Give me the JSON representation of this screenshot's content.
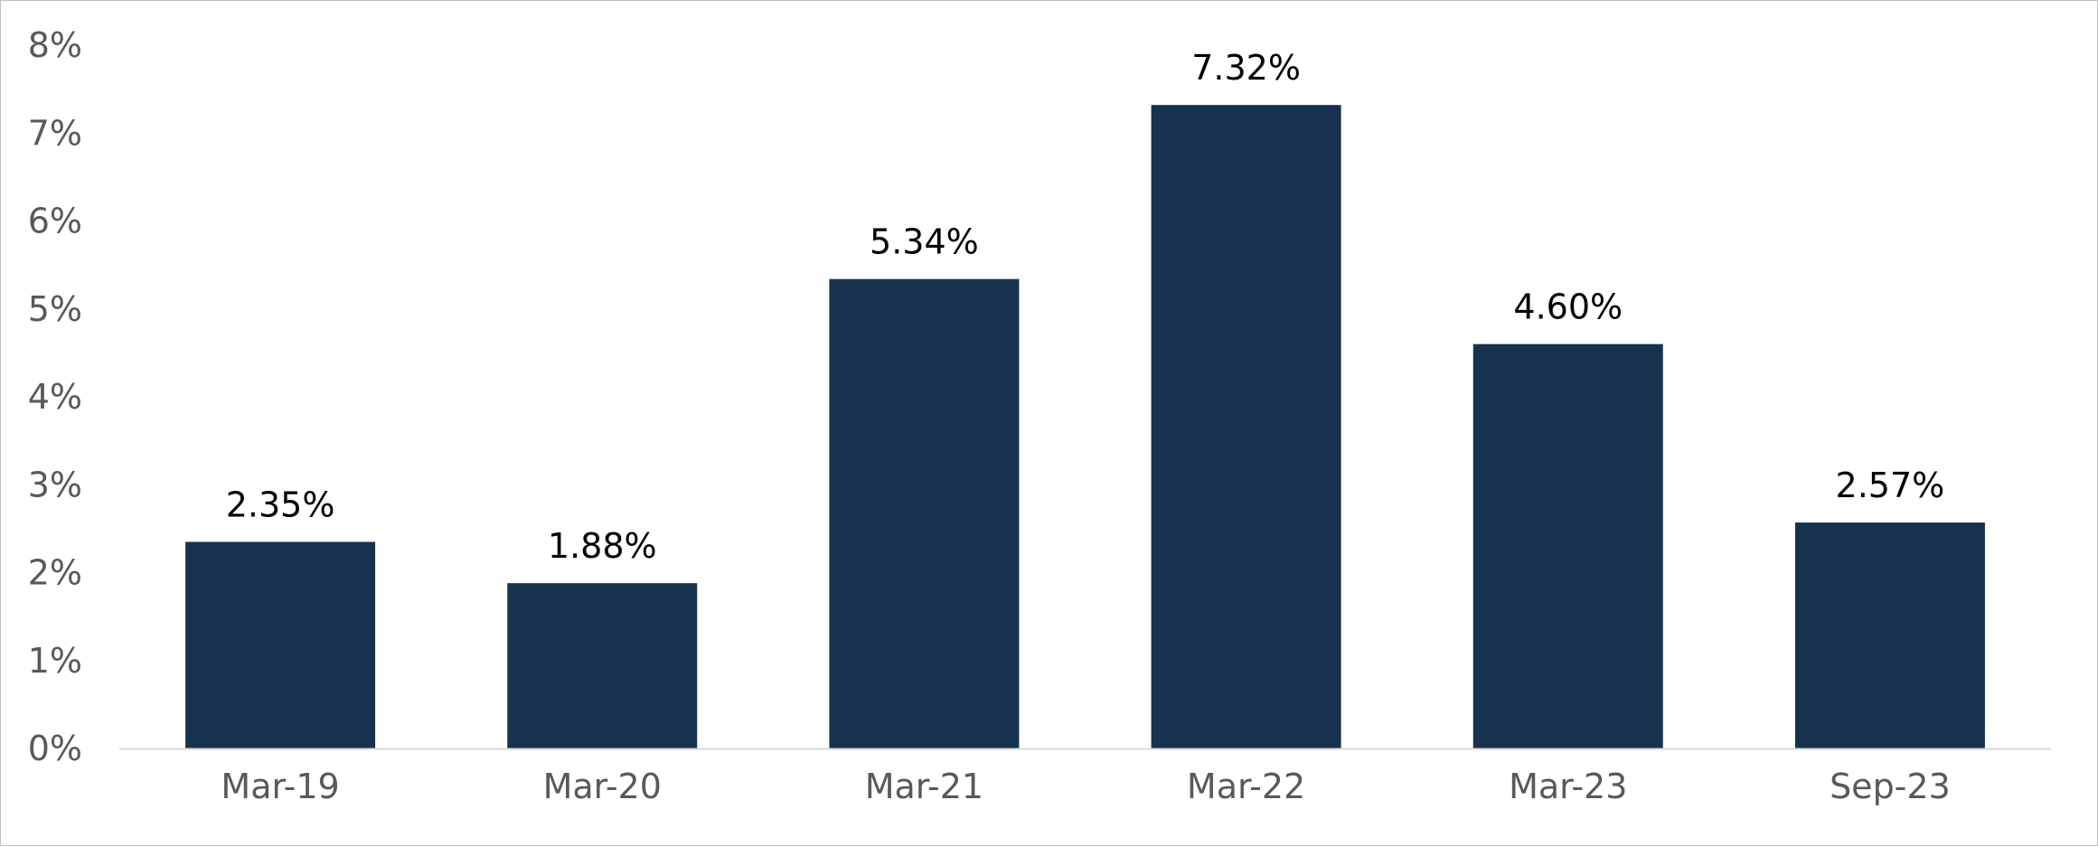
{
  "chart_data": {
    "type": "bar",
    "categories": [
      "Mar-19",
      "Mar-20",
      "Mar-21",
      "Mar-22",
      "Mar-23",
      "Sep-23"
    ],
    "values": [
      2.35,
      1.88,
      5.34,
      7.32,
      4.6,
      2.57
    ],
    "data_labels": [
      "2.35%",
      "1.88%",
      "5.34%",
      "7.32%",
      "4.60%",
      "2.57%"
    ],
    "y_ticks": [
      {
        "value": 0,
        "label": "0%"
      },
      {
        "value": 1,
        "label": "1%"
      },
      {
        "value": 2,
        "label": "2%"
      },
      {
        "value": 3,
        "label": "3%"
      },
      {
        "value": 4,
        "label": "4%"
      },
      {
        "value": 5,
        "label": "5%"
      },
      {
        "value": 6,
        "label": "6%"
      },
      {
        "value": 7,
        "label": "7%"
      },
      {
        "value": 8,
        "label": "8%"
      }
    ],
    "ylim": [
      0,
      8
    ],
    "grid": false,
    "legend": "none",
    "bar_color": "#17324f",
    "axis_color": "#d9d9d9"
  }
}
